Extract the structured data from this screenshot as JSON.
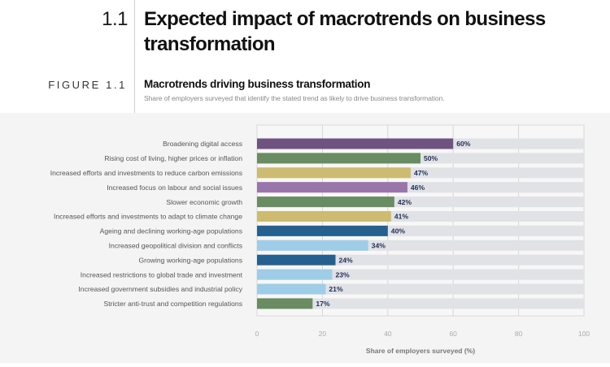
{
  "header": {
    "section_number": "1.1",
    "section_title": "Expected impact of macrotrends on business transformation",
    "figure_label": "FIGURE 1.1",
    "figure_title": "Macrotrends driving business transformation",
    "figure_subtitle": "Share of employers surveyed that identify the stated trend as likely to drive business transformation."
  },
  "chart_data": {
    "type": "bar",
    "orientation": "horizontal",
    "title": "Macrotrends driving business transformation",
    "xlabel": "Share of employers surveyed (%)",
    "ylabel": "",
    "xlim": [
      0,
      100
    ],
    "xticks": [
      0,
      20,
      40,
      60,
      80,
      100
    ],
    "grid": true,
    "categories": [
      "Broadening digital access",
      "Rising cost of living, higher prices or inflation",
      "Increased efforts and investments to reduce carbon emissions",
      "Increased focus on labour and social issues",
      "Slower economic growth",
      "Increased efforts and investments to adapt to climate change",
      "Ageing and declining working-age populations",
      "Increased geopolitical division and conflicts",
      "Growing working-age populations",
      "Increased restrictions to global trade and investment",
      "Increased government subsidies and industrial policy",
      "Stricter anti-trust and competition regulations"
    ],
    "values": [
      60,
      50,
      47,
      46,
      42,
      41,
      40,
      34,
      24,
      23,
      21,
      17
    ],
    "value_labels": [
      "60%",
      "50%",
      "47%",
      "46%",
      "42%",
      "41%",
      "40%",
      "34%",
      "24%",
      "23%",
      "21%",
      "17%"
    ],
    "colors": [
      "#6e527f",
      "#6a8c62",
      "#cdbb71",
      "#9a75a9",
      "#6a8c62",
      "#cdbb71",
      "#25608f",
      "#9fcce6",
      "#25608f",
      "#9fcce6",
      "#9fcce6",
      "#6a8c62"
    ],
    "track_color": "#e1e2e6",
    "label_color": "#1f2d55"
  }
}
